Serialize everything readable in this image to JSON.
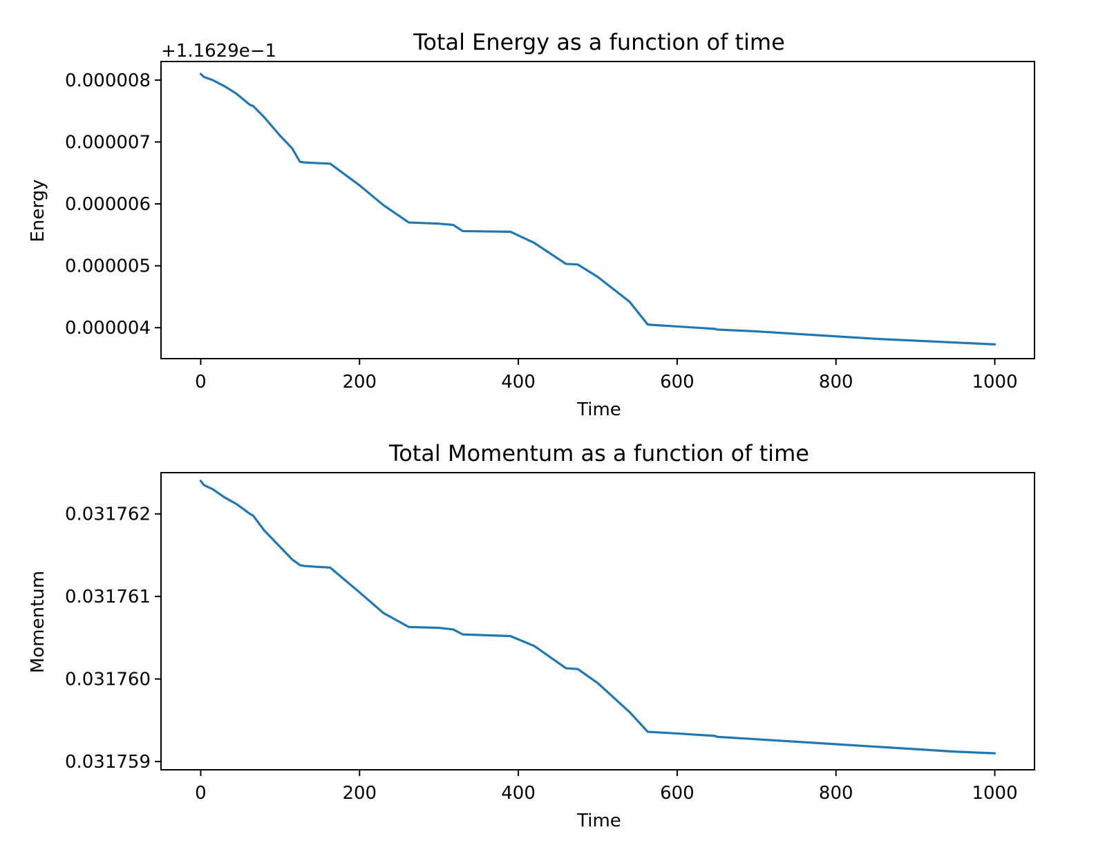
{
  "chart_data": [
    {
      "type": "line",
      "title": "Total Energy as a function of time",
      "xlabel": "Time",
      "ylabel": "Energy",
      "y_offset_label": "+1.1629e−1",
      "xlim": [
        -50,
        1050
      ],
      "ylim": [
        3.5e-06,
        8.3e-06
      ],
      "xticks": [
        0,
        200,
        400,
        600,
        800,
        1000
      ],
      "xtick_labels": [
        "0",
        "200",
        "400",
        "600",
        "800",
        "1000"
      ],
      "yticks": [
        4e-06,
        5e-06,
        6e-06,
        7e-06,
        8e-06
      ],
      "ytick_labels": [
        "0.000004",
        "0.000005",
        "0.000006",
        "0.000007",
        "0.000008"
      ],
      "grid": false,
      "color": "#1f77b4",
      "series": [
        {
          "x": [
            0,
            4,
            15,
            30,
            45,
            62,
            66,
            80,
            100,
            115,
            125,
            130,
            145,
            163,
            200,
            230,
            262,
            300,
            318,
            330,
            390,
            420,
            460,
            475,
            500,
            540,
            563,
            600,
            648,
            650,
            700,
            750,
            800,
            850,
            900,
            950,
            1000
          ],
          "y": [
            8.1e-06,
            8.05e-06,
            8e-06,
            7.9e-06,
            7.78e-06,
            7.6e-06,
            7.58e-06,
            7.4e-06,
            7.1e-06,
            6.9e-06,
            6.68e-06,
            6.67e-06,
            6.66e-06,
            6.65e-06,
            6.3e-06,
            5.98e-06,
            5.7e-06,
            5.68e-06,
            5.66e-06,
            5.56e-06,
            5.55e-06,
            5.37e-06,
            5.03e-06,
            5.02e-06,
            4.82e-06,
            4.42e-06,
            4.05e-06,
            4.02e-06,
            3.98e-06,
            3.97e-06,
            3.94e-06,
            3.9e-06,
            3.86e-06,
            3.82e-06,
            3.79e-06,
            3.76e-06,
            3.73e-06
          ]
        }
      ]
    },
    {
      "type": "line",
      "title": "Total Momentum as a function of time",
      "xlabel": "Time",
      "ylabel": "Momentum",
      "xlim": [
        -50,
        1050
      ],
      "ylim": [
        0.0317589,
        0.0317625
      ],
      "xticks": [
        0,
        200,
        400,
        600,
        800,
        1000
      ],
      "xtick_labels": [
        "0",
        "200",
        "400",
        "600",
        "800",
        "1000"
      ],
      "yticks": [
        0.031759,
        0.03176,
        0.031761,
        0.031762
      ],
      "ytick_labels": [
        "0.031759",
        "0.031760",
        "0.031761",
        "0.031762"
      ],
      "grid": false,
      "color": "#1f77b4",
      "series": [
        {
          "x": [
            0,
            4,
            15,
            30,
            45,
            62,
            66,
            80,
            100,
            115,
            125,
            130,
            145,
            163,
            200,
            230,
            262,
            300,
            318,
            330,
            390,
            420,
            460,
            475,
            500,
            540,
            563,
            600,
            648,
            650,
            700,
            750,
            800,
            850,
            900,
            950,
            1000
          ],
          "y": [
            0.0317624,
            0.03176235,
            0.0317623,
            0.0317622,
            0.03176212,
            0.031762,
            0.03176198,
            0.0317618,
            0.0317616,
            0.03176145,
            0.03176138,
            0.03176137,
            0.03176136,
            0.03176135,
            0.03176105,
            0.0317608,
            0.03176063,
            0.03176062,
            0.0317606,
            0.03176054,
            0.03176052,
            0.0317604,
            0.03176013,
            0.03176012,
            0.03175995,
            0.0317596,
            0.03175936,
            0.03175934,
            0.03175931,
            0.0317593,
            0.03175927,
            0.03175924,
            0.03175921,
            0.03175918,
            0.03175915,
            0.03175912,
            0.0317591
          ]
        }
      ]
    }
  ]
}
